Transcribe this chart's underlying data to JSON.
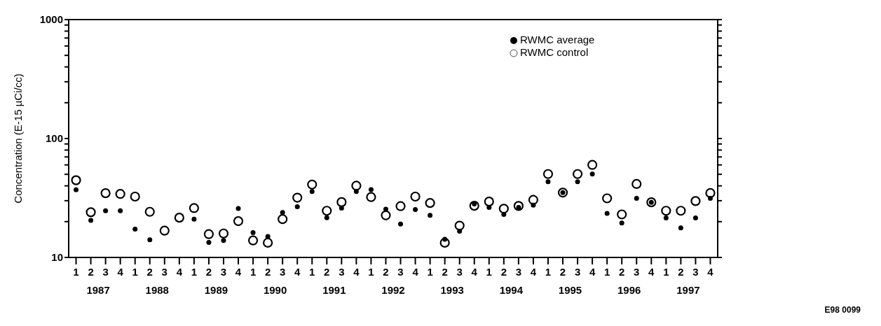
{
  "chart_data": {
    "type": "scatter",
    "ylabel": "Concentration (E-15 µCi/cc)",
    "categories": [
      "1",
      "2",
      "3",
      "4",
      "1",
      "2",
      "3",
      "4",
      "1",
      "2",
      "3",
      "4",
      "1",
      "2",
      "3",
      "4",
      "1",
      "2",
      "3",
      "4",
      "1",
      "2",
      "3",
      "4",
      "1",
      "2",
      "3",
      "4",
      "1",
      "2",
      "3",
      "4",
      "1",
      "2",
      "3",
      "4",
      "1",
      "2",
      "3",
      "4",
      "1",
      "2",
      "3",
      "4"
    ],
    "series": [
      {
        "name": "RWMC average",
        "color": "#000000",
        "values": [
          37.1,
          20.5,
          24.7,
          24.7,
          17.3,
          14.1,
          null,
          null,
          21.0,
          13.4,
          13.9,
          25.8,
          16.2,
          15.0,
          23.9,
          26.7,
          35.8,
          21.6,
          26.0,
          35.9,
          37.2,
          25.5,
          19.1,
          25.3,
          22.6,
          14.2,
          16.6,
          28.2,
          26.3,
          23.0,
          26.3,
          27.5,
          43.4,
          35.1,
          43.4,
          50.3,
          23.5,
          19.5,
          31.4,
          29.1,
          21.5,
          17.7,
          21.5,
          31.4
        ]
      },
      {
        "name": "RWMC control",
        "color": "#000000",
        "values": [
          44.6,
          24.0,
          34.7,
          34.2,
          32.5,
          24.2,
          16.8,
          21.6,
          26.0,
          15.7,
          15.9,
          20.2,
          13.9,
          13.3,
          21.0,
          31.8,
          41.0,
          24.7,
          29.2,
          40.1,
          32.2,
          22.6,
          27.0,
          32.5,
          28.7,
          13.3,
          18.5,
          27.2,
          29.5,
          25.7,
          27.1,
          30.5,
          50.3,
          35.1,
          50.3,
          60.0,
          31.4,
          23.0,
          41.5,
          29.1,
          24.7,
          24.7,
          29.8,
          34.8
        ]
      }
    ],
    "log": true,
    "ylim": [
      10,
      1000
    ],
    "yticks": [
      10,
      {
        "value": 20,
        "label": null
      },
      {
        "value": 30,
        "label": null
      },
      {
        "value": 40,
        "label": null
      },
      {
        "value": 50,
        "label": null
      },
      {
        "value": 60,
        "label": null
      },
      {
        "value": 70,
        "label": null
      },
      {
        "value": 80,
        "label": null
      },
      {
        "value": 90,
        "label": null
      },
      100,
      {
        "value": 200,
        "label": null
      },
      {
        "value": 300,
        "label": null
      },
      {
        "value": 400,
        "label": null
      },
      {
        "value": 500,
        "label": null
      },
      {
        "value": 600,
        "label": null
      },
      {
        "value": 700,
        "label": null
      },
      {
        "value": 800,
        "label": null
      },
      {
        "value": 900,
        "label": null
      },
      1000
    ],
    "grid": false,
    "legend": "top right",
    "marker": "circle",
    "annotations": [
      "1987",
      "1988",
      "1989",
      "1990",
      "1991",
      "1992",
      "1993",
      "1994",
      "1995",
      "1996",
      "1997",
      "E98 0099"
    ]
  }
}
